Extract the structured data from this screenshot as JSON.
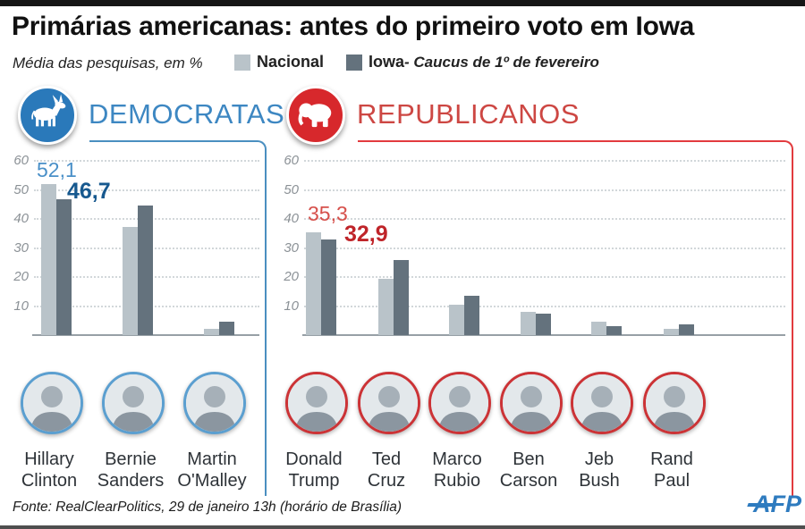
{
  "header": {
    "title": "Primárias americanas: antes do primeiro voto em Iowa"
  },
  "legend": {
    "subtitle": "Média das pesquisas, em %",
    "items": [
      {
        "label": "Nacional",
        "color": "#b9c3c9"
      },
      {
        "label": "Iowa",
        "color": "#64727d"
      }
    ],
    "note": "-  Caucus de 1º de fevereiro"
  },
  "sections": {
    "democrats": {
      "title": "DEMOCRATAS",
      "color": "#3d87c2",
      "icon": "donkey-icon"
    },
    "republicans": {
      "title": "REPUBLICANOS",
      "color": "#cd4743",
      "icon": "elephant-icon"
    }
  },
  "chart_data": [
    {
      "type": "bar",
      "title": "Democratas",
      "ylabel": "Média das pesquisas, em %",
      "ylim": [
        0,
        60
      ],
      "yticks": [
        10,
        20,
        30,
        40,
        50,
        60
      ],
      "grid": "dotted",
      "categories": [
        "Hillary Clinton",
        "Bernie Sanders",
        "Martin O'Malley"
      ],
      "series": [
        {
          "name": "Nacional",
          "color": "#b9c3c9",
          "values": [
            52.1,
            37.2,
            2.3
          ]
        },
        {
          "name": "Iowa",
          "color": "#64727d",
          "values": [
            46.7,
            44.5,
            4.6
          ]
        }
      ],
      "annotations": [
        {
          "text": "52,1",
          "series": "Nacional",
          "category": "Hillary Clinton"
        },
        {
          "text": "46,7",
          "series": "Iowa",
          "category": "Hillary Clinton"
        }
      ]
    },
    {
      "type": "bar",
      "title": "Republicanos",
      "ylabel": "Média das pesquisas, em %",
      "ylim": [
        0,
        60
      ],
      "yticks": [
        10,
        20,
        30,
        40,
        50,
        60
      ],
      "grid": "dotted",
      "categories": [
        "Donald Trump",
        "Ted Cruz",
        "Marco Rubio",
        "Ben Carson",
        "Jeb Bush",
        "Rand Paul"
      ],
      "series": [
        {
          "name": "Nacional",
          "color": "#b9c3c9",
          "values": [
            35.3,
            19.3,
            10.4,
            8.1,
            4.5,
            2.2
          ]
        },
        {
          "name": "Iowa",
          "color": "#64727d",
          "values": [
            32.9,
            25.7,
            13.5,
            7.4,
            3.1,
            3.7
          ]
        }
      ],
      "annotations": [
        {
          "text": "35,3",
          "series": "Nacional",
          "category": "Donald Trump"
        },
        {
          "text": "32,9",
          "series": "Iowa",
          "category": "Donald Trump"
        }
      ]
    }
  ],
  "candidates": {
    "democrats": [
      {
        "line1": "Hillary",
        "line2": "Clinton"
      },
      {
        "line1": "Bernie",
        "line2": "Sanders"
      },
      {
        "line1": "Martin",
        "line2": "O'Malley"
      }
    ],
    "republicans": [
      {
        "line1": "Donald",
        "line2": "Trump"
      },
      {
        "line1": "Ted",
        "line2": "Cruz"
      },
      {
        "line1": "Marco",
        "line2": "Rubio"
      },
      {
        "line1": "Ben",
        "line2": "Carson"
      },
      {
        "line1": "Jeb",
        "line2": "Bush"
      },
      {
        "line1": "Rand",
        "line2": "Paul"
      }
    ]
  },
  "footer": {
    "source": "Fonte: RealClearPolitics, 29 de janeiro 13h (horário de Brasília)",
    "logo": "AFP"
  }
}
